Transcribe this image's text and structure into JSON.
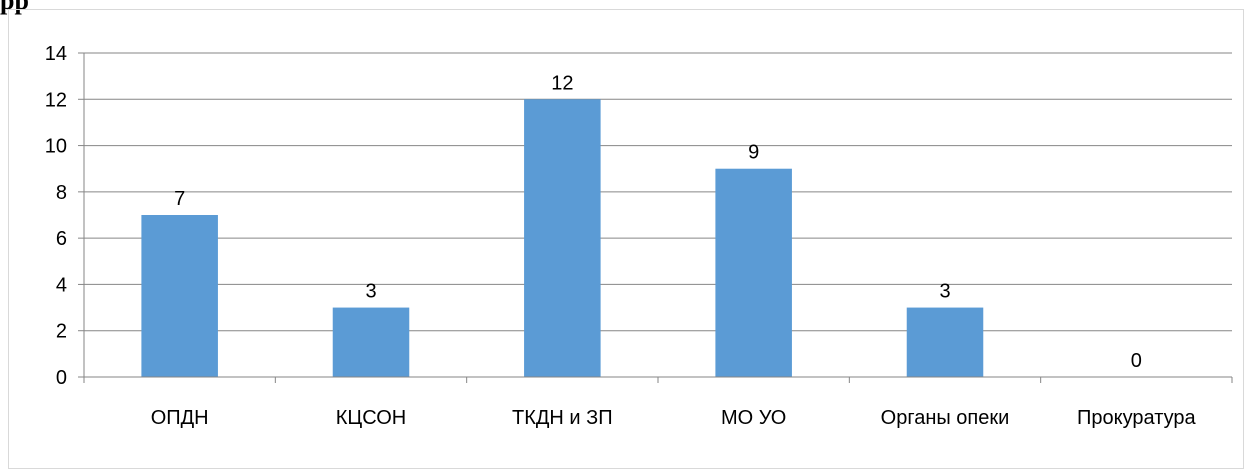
{
  "header_fragment": "рр",
  "chart_data": {
    "type": "bar",
    "categories": [
      "ОПДН",
      "КЦСОН",
      "ТКДН и ЗП",
      "МО УО",
      "Органы опеки",
      "Прокуратура"
    ],
    "values": [
      7,
      3,
      12,
      9,
      3,
      0
    ],
    "data_labels": [
      "7",
      "3",
      "12",
      "9",
      "3",
      "0"
    ],
    "ylim": [
      0,
      14
    ],
    "yticks": [
      0,
      2,
      4,
      6,
      8,
      10,
      12,
      14
    ],
    "ytick_labels": [
      "0",
      "2",
      "4",
      "6",
      "8",
      "10",
      "12",
      "14"
    ],
    "grid": true,
    "legend": "none",
    "bar_color": "#5b9bd5",
    "grid_color": "#868686",
    "text_color": "#000000"
  }
}
